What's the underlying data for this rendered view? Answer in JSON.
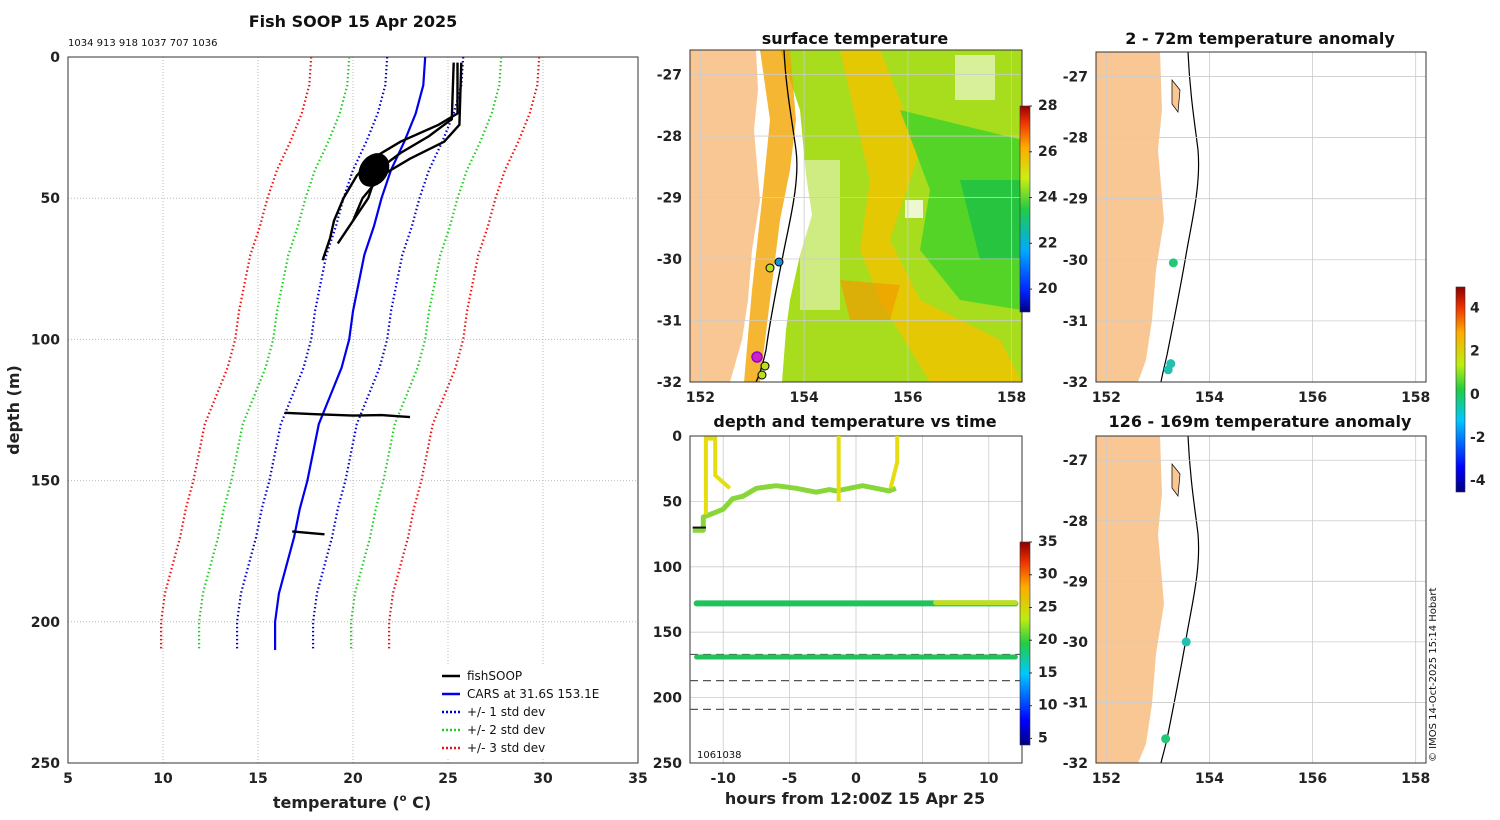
{
  "chart_data": [
    {
      "id": "profile",
      "type": "line",
      "title": "Fish SOOP 15 Apr 2025",
      "subtitle": "1034 913 918 1037 707 1036",
      "xlabel": "temperature (",
      "xlabel_sup": "o",
      "xlabel_end": " C)",
      "ylabel": "depth (m)",
      "xlim": [
        5,
        35
      ],
      "ylim": [
        0,
        250
      ],
      "xticks": [
        5,
        10,
        15,
        20,
        25,
        30,
        35
      ],
      "yticks": [
        0,
        50,
        100,
        150,
        200,
        250
      ],
      "legend": {
        "position": "bottom-right",
        "entries": [
          {
            "label": "fishSOOP",
            "color": "#000000",
            "style": "solid"
          },
          {
            "label": "CARS at 31.6S 153.1E",
            "color": "#0000ee",
            "style": "solid"
          },
          {
            "label": "+/- 1 std dev",
            "color": "#0000cc",
            "style": "dotted"
          },
          {
            "label": "+/- 2 std dev",
            "color": "#22cc22",
            "style": "dotted"
          },
          {
            "label": "+/- 3 std dev",
            "color": "#ee1111",
            "style": "dotted"
          }
        ]
      },
      "cars_mean": {
        "depth": [
          0,
          10,
          20,
          30,
          40,
          50,
          60,
          70,
          80,
          90,
          100,
          110,
          120,
          130,
          140,
          150,
          160,
          170,
          180,
          190,
          200,
          210
        ],
        "temp": [
          23.8,
          23.7,
          23.3,
          22.7,
          22.0,
          21.5,
          21.1,
          20.6,
          20.3,
          20.0,
          19.8,
          19.4,
          18.8,
          18.2,
          17.9,
          17.6,
          17.2,
          16.9,
          16.5,
          16.1,
          15.9,
          15.9
        ]
      },
      "std_dev": [
        {
          "label": "+/- 1 std dev",
          "color": "#0000cc",
          "offset": 2.0
        },
        {
          "label": "+/- 2 std dev",
          "color": "#22cc22",
          "offset": 4.0
        },
        {
          "label": "+/- 3 std dev",
          "color": "#ee1111",
          "offset": 6.0
        }
      ],
      "fishsoop_profiles": [
        {
          "depth": [
            2,
            20,
            24,
            30,
            36,
            42,
            50,
            58,
            64,
            72
          ],
          "temp": [
            25.5,
            25.5,
            24.5,
            22.5,
            21.0,
            20.2,
            19.5,
            19.0,
            18.8,
            18.4
          ]
        },
        {
          "depth": [
            2,
            22,
            28,
            34,
            40,
            50,
            60,
            66
          ],
          "temp": [
            25.3,
            25.2,
            24.0,
            22.5,
            21.3,
            20.8,
            19.8,
            19.2
          ]
        },
        {
          "depth": [
            2,
            24,
            30,
            36,
            42,
            50,
            58
          ],
          "temp": [
            25.7,
            25.6,
            24.8,
            23.0,
            21.5,
            20.5,
            20.0
          ]
        },
        {
          "depth": [
            126,
            126.5,
            127,
            126.8,
            127.5
          ],
          "temp": [
            16.4,
            18.0,
            20.0,
            21.5,
            23.0
          ]
        },
        {
          "depth": [
            168,
            168.5,
            169
          ],
          "temp": [
            16.8,
            17.6,
            18.5
          ]
        }
      ]
    },
    {
      "id": "sst_map",
      "type": "heatmap",
      "title": "surface temperature",
      "xticks": [
        152,
        154,
        156,
        158
      ],
      "yticks": [
        -27,
        -28,
        -29,
        -30,
        -31,
        -32
      ],
      "xlim": [
        151.8,
        158.2
      ],
      "ylim": [
        -32,
        -26.6
      ],
      "colorbar": {
        "ticks": [
          20,
          22,
          24,
          26,
          28
        ],
        "range": [
          19,
          28
        ]
      }
    },
    {
      "id": "depth_time",
      "type": "scatter",
      "title": "depth and temperature vs time",
      "xlabel": "hours from 12:00Z 15 Apr 25",
      "annotation": "1061038",
      "xticks": [
        -10,
        -5,
        0,
        5,
        10
      ],
      "yticks": [
        0,
        50,
        100,
        150,
        200,
        250
      ],
      "xlim": [
        -12.5,
        12.5
      ],
      "ylim": [
        0,
        250
      ],
      "dashed_depths": [
        167,
        187,
        209
      ],
      "colorbar": {
        "ticks": [
          5,
          10,
          15,
          20,
          25,
          30,
          35
        ],
        "range": [
          4,
          35
        ]
      }
    },
    {
      "id": "anom_shallow",
      "type": "scatter",
      "title": "2 - 72m temperature anomaly",
      "xticks": [
        152,
        154,
        156,
        158
      ],
      "yticks": [
        -27,
        -28,
        -29,
        -30,
        -31,
        -32
      ],
      "points": [
        {
          "lon": 153.3,
          "lat": -30.05,
          "anom": 0.4
        },
        {
          "lon": 153.25,
          "lat": -31.7,
          "anom": -0.8
        },
        {
          "lon": 153.2,
          "lat": -31.8,
          "anom": -0.9
        }
      ]
    },
    {
      "id": "anom_deep",
      "type": "scatter",
      "title": "126 - 169m temperature anomaly",
      "xticks": [
        152,
        154,
        156,
        158
      ],
      "yticks": [
        -27,
        -28,
        -29,
        -30,
        -31,
        -32
      ],
      "points": [
        {
          "lon": 153.55,
          "lat": -30.0,
          "anom": -0.3
        },
        {
          "lon": 153.15,
          "lat": -31.6,
          "anom": -0.2
        }
      ]
    },
    {
      "id": "anom_colorbar",
      "type": "heatmap",
      "ticks": [
        4,
        2,
        0,
        -2,
        -4
      ],
      "range": [
        -4.5,
        5
      ]
    }
  ],
  "credit": "© IMOS 14-Oct-2025 15:14 Hobart"
}
